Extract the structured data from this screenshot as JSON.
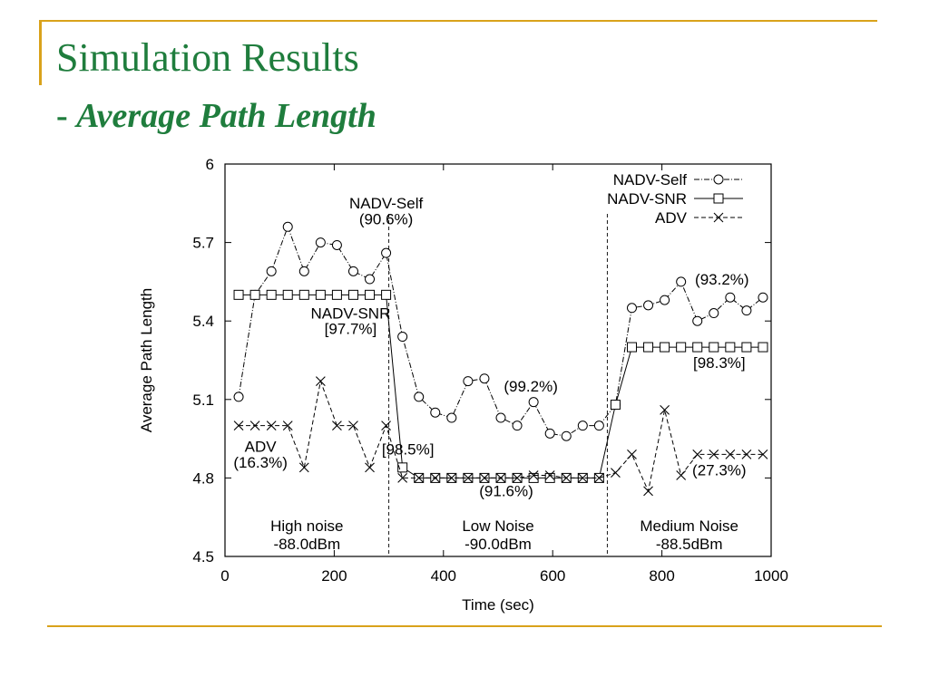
{
  "slide": {
    "title": "Simulation Results",
    "subtitle_dash": "- ",
    "subtitle": "Average Path Length",
    "accent_color": "#d9a21b",
    "title_color": "#1f7d3d"
  },
  "chart_data": {
    "type": "line",
    "xlabel": "Time (sec)",
    "ylabel": "Average Path Length",
    "xlim": [
      0,
      1000
    ],
    "ylim": [
      4.5,
      6.0
    ],
    "xticks": [
      0,
      200,
      400,
      600,
      800,
      1000
    ],
    "yticks": [
      4.5,
      4.8,
      5.1,
      5.4,
      5.7,
      6.0
    ],
    "ytick_labels": [
      "4.5",
      "4.8",
      "5.1",
      "5.4",
      "5.7",
      "6"
    ],
    "grid": false,
    "legend_position": "top-right",
    "phase_boundaries": [
      300,
      700
    ],
    "series": [
      {
        "name": "NADV-Self",
        "marker": "circle",
        "line_style": "dash-dot",
        "x": [
          25,
          55,
          85,
          115,
          145,
          175,
          205,
          235,
          265,
          295,
          325,
          355,
          385,
          415,
          445,
          475,
          505,
          535,
          565,
          595,
          625,
          655,
          685,
          715,
          745,
          775,
          805,
          835,
          865,
          895,
          925,
          955,
          985
        ],
        "values": [
          5.11,
          5.5,
          5.59,
          5.76,
          5.59,
          5.7,
          5.69,
          5.59,
          5.56,
          5.66,
          5.34,
          5.11,
          5.05,
          5.03,
          5.17,
          5.18,
          5.03,
          5.0,
          5.09,
          4.97,
          4.96,
          5.0,
          5.0,
          5.08,
          5.45,
          5.46,
          5.48,
          5.55,
          5.4,
          5.43,
          5.49,
          5.44,
          5.49
        ]
      },
      {
        "name": "NADV-SNR",
        "marker": "square",
        "line_style": "solid",
        "x": [
          25,
          55,
          85,
          115,
          145,
          175,
          205,
          235,
          265,
          295,
          325,
          355,
          385,
          415,
          445,
          475,
          505,
          535,
          565,
          595,
          625,
          655,
          685,
          715,
          745,
          775,
          805,
          835,
          865,
          895,
          925,
          955,
          985
        ],
        "values": [
          5.5,
          5.5,
          5.5,
          5.5,
          5.5,
          5.5,
          5.5,
          5.5,
          5.5,
          5.5,
          4.84,
          4.8,
          4.8,
          4.8,
          4.8,
          4.8,
          4.8,
          4.8,
          4.8,
          4.8,
          4.8,
          4.8,
          4.8,
          5.08,
          5.3,
          5.3,
          5.3,
          5.3,
          5.3,
          5.3,
          5.3,
          5.3,
          5.3
        ]
      },
      {
        "name": "ADV",
        "marker": "x",
        "line_style": "dashed",
        "x": [
          25,
          55,
          85,
          115,
          145,
          175,
          205,
          235,
          265,
          295,
          325,
          355,
          385,
          415,
          445,
          475,
          505,
          535,
          565,
          595,
          625,
          655,
          685,
          715,
          745,
          775,
          805,
          835,
          865,
          895,
          925,
          955,
          985
        ],
        "values": [
          5.0,
          5.0,
          5.0,
          5.0,
          4.84,
          5.17,
          5.0,
          5.0,
          4.84,
          5.0,
          4.8,
          4.8,
          4.8,
          4.8,
          4.8,
          4.8,
          4.8,
          4.8,
          4.81,
          4.81,
          4.8,
          4.8,
          4.8,
          4.82,
          4.89,
          4.75,
          5.06,
          4.81,
          4.89,
          4.89,
          4.89,
          4.89,
          4.89
        ]
      }
    ],
    "annotations": [
      {
        "text": "NADV-Self",
        "x": 295,
        "y": 5.83
      },
      {
        "text": "(90.6%)",
        "x": 295,
        "y": 5.77
      },
      {
        "text": "NADV-SNR",
        "x": 230,
        "y": 5.41
      },
      {
        "text": "[97.7%]",
        "x": 230,
        "y": 5.35
      },
      {
        "text": "ADV",
        "x": 65,
        "y": 4.9
      },
      {
        "text": "(16.3%)",
        "x": 65,
        "y": 4.84
      },
      {
        "text": "[98.5%]",
        "x": 335,
        "y": 4.89
      },
      {
        "text": "(99.2%)",
        "x": 560,
        "y": 5.13
      },
      {
        "text": "(91.6%)",
        "x": 515,
        "y": 4.73
      },
      {
        "text": "(93.2%)",
        "x": 910,
        "y": 5.54
      },
      {
        "text": "[98.3%]",
        "x": 905,
        "y": 5.22
      },
      {
        "text": "(27.3%)",
        "x": 905,
        "y": 4.81
      }
    ],
    "regions": [
      {
        "name": "High noise",
        "level": "-88.0dBm"
      },
      {
        "name": "Low Noise",
        "level": "-90.0dBm"
      },
      {
        "name": "Medium Noise",
        "level": "-88.5dBm"
      }
    ]
  }
}
